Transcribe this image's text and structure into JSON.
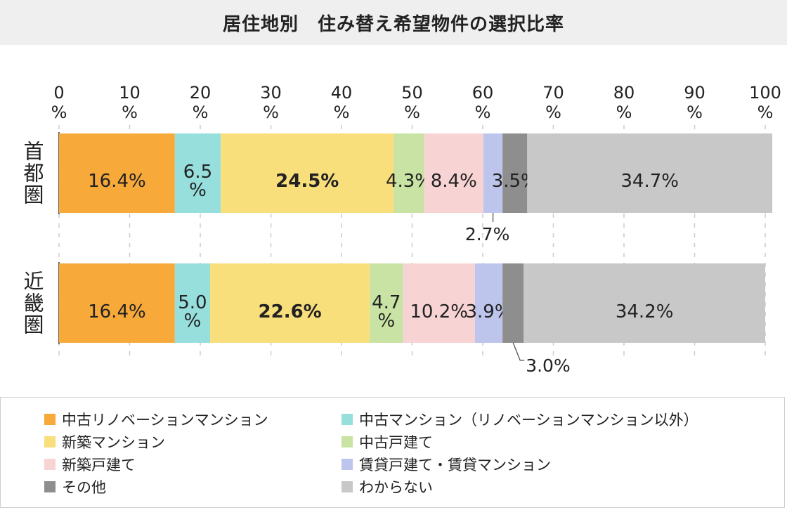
{
  "chart_data": {
    "type": "bar",
    "orientation": "horizontal",
    "stacked": true,
    "title": "居住地別　住み替え希望物件の選択比率",
    "xlim": [
      0,
      100
    ],
    "tick_labels": [
      {
        "number": "0",
        "unit": "%"
      },
      {
        "number": "10",
        "unit": "%"
      },
      {
        "number": "20",
        "unit": "%"
      },
      {
        "number": "30",
        "unit": "%"
      },
      {
        "number": "40",
        "unit": "%"
      },
      {
        "number": "50",
        "unit": "%"
      },
      {
        "number": "60",
        "unit": "%"
      },
      {
        "number": "70",
        "unit": "%"
      },
      {
        "number": "80",
        "unit": "%"
      },
      {
        "number": "90",
        "unit": "%"
      },
      {
        "number": "100",
        "unit": "%"
      }
    ],
    "grid": true,
    "legend_position": "bottom",
    "categories": [
      "首都圏",
      "近畿圏"
    ],
    "series": [
      {
        "name": "中古リノベーションマンション",
        "color": "#f7a93a",
        "values": [
          16.4,
          16.4
        ],
        "labels": [
          "16.4%",
          "16.4%"
        ]
      },
      {
        "name": "中古マンション（リノベーションマンション以外）",
        "color": "#96dfdd",
        "values": [
          6.5,
          5.0
        ],
        "labels": [
          "6.5\n%",
          "5.0\n%"
        ]
      },
      {
        "name": "新築マンション",
        "color": "#f9de7c",
        "values": [
          24.5,
          22.6
        ],
        "labels": [
          "24.5%",
          "22.6%"
        ],
        "bold": true
      },
      {
        "name": "中古戸建て",
        "color": "#c8e3a3",
        "values": [
          4.3,
          4.7
        ],
        "labels": [
          "4.3%",
          "4.7\n%"
        ]
      },
      {
        "name": "新築戸建て",
        "color": "#f8d3d4",
        "values": [
          8.4,
          10.2
        ],
        "labels": [
          "8.4%",
          "10.2%"
        ]
      },
      {
        "name": "賃貸戸建て・賃貸マンション",
        "color": "#bec5ec",
        "values": [
          2.7,
          3.9
        ],
        "labels": [
          "2.7%",
          "3.9%"
        ]
      },
      {
        "name": "その他",
        "color": "#8e8e8e",
        "values": [
          3.5,
          3.0
        ],
        "labels": [
          "3.5%",
          "3.0%"
        ]
      },
      {
        "name": "わからない",
        "color": "#c8c8c8",
        "values": [
          34.7,
          34.2
        ],
        "labels": [
          "34.7%",
          "34.2%"
        ]
      }
    ]
  }
}
